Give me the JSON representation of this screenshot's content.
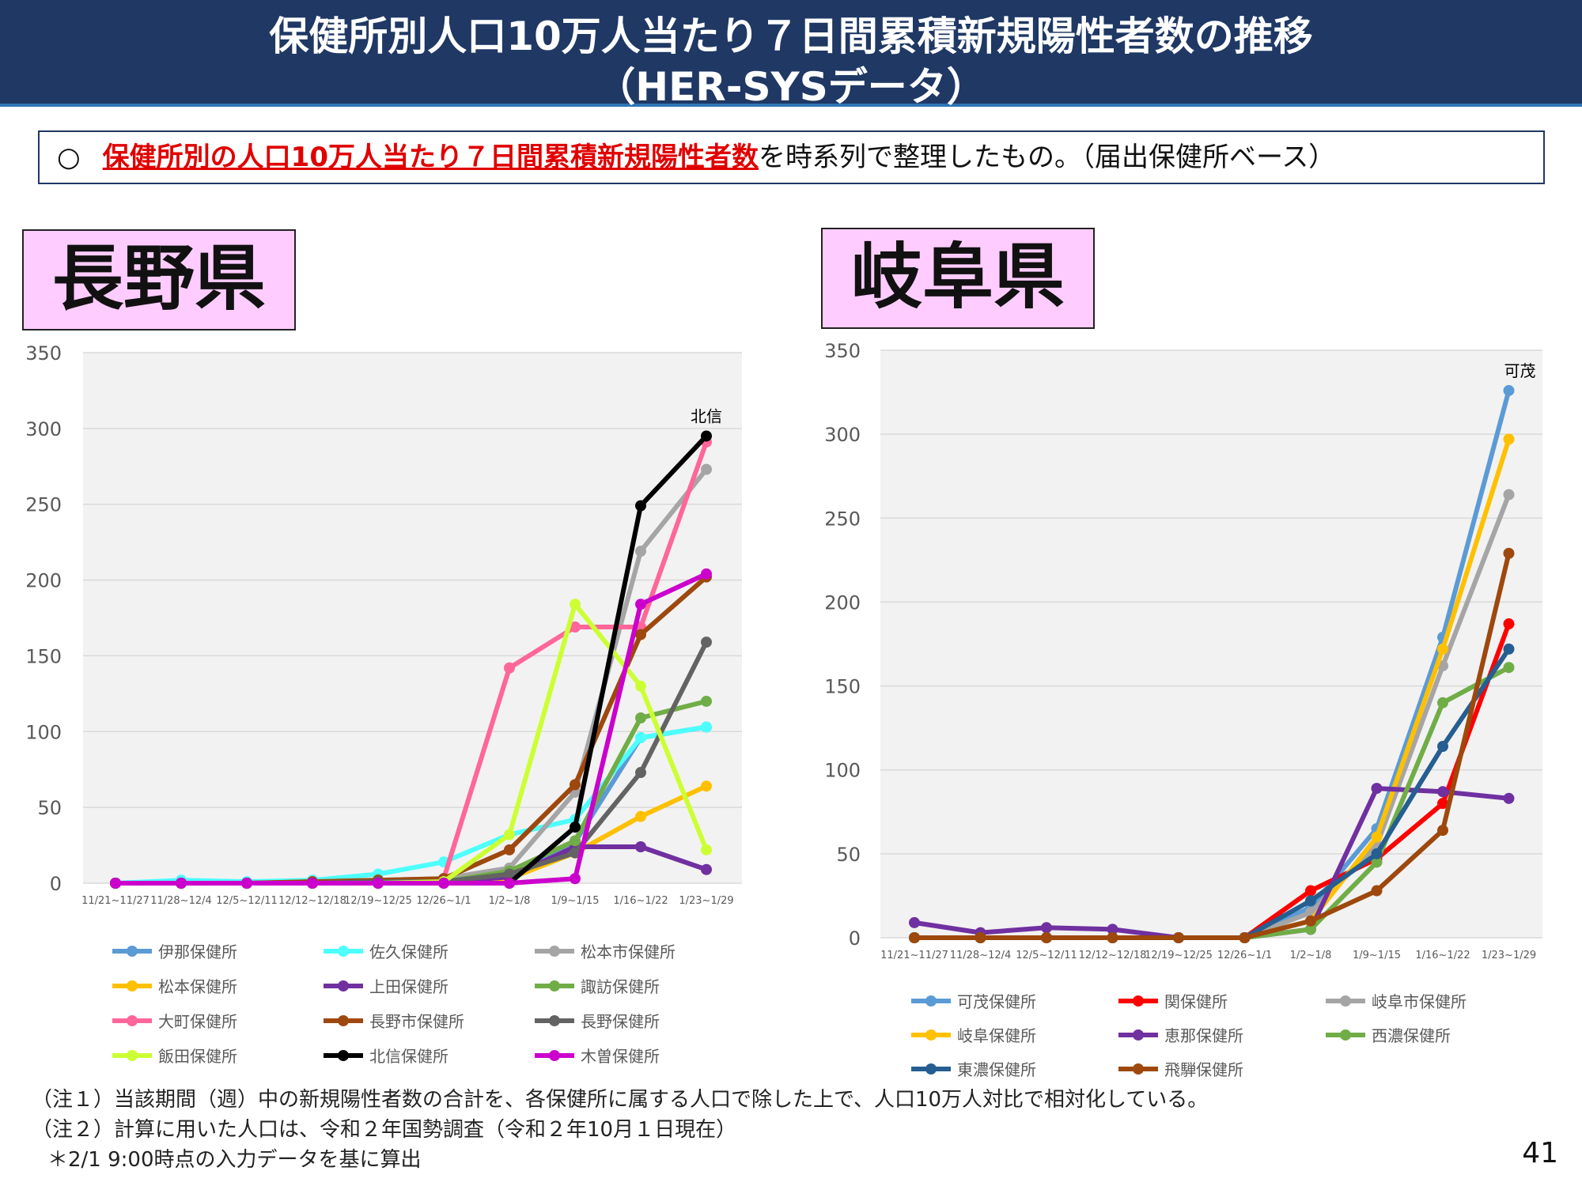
{
  "title": {
    "line1": "保健所別人口10万人当たり７日間累積新規陽性者数の推移",
    "line2": "（HER-SYSデータ）"
  },
  "summary": {
    "mark": "○",
    "emphasis": "保健所別の人口10万人当たり７日間累積新規陽性者数",
    "rest": "を時系列で整理したもの。（届出保健所ベース）"
  },
  "chart_data": [
    {
      "type": "line",
      "panel_label": "長野県",
      "annotation": "北信",
      "ylim": [
        0,
        350
      ],
      "yticks": [
        0,
        50,
        100,
        150,
        200,
        250,
        300,
        350
      ],
      "grid": true,
      "legend_position": "bottom",
      "categories": [
        "11/21~11/27",
        "11/28~12/4",
        "12/5~12/11",
        "12/12~12/18",
        "12/19~12/25",
        "12/26~1/1",
        "1/2~1/8",
        "1/9~1/15",
        "1/16~1/22",
        "1/23~1/29"
      ],
      "series": [
        {
          "name": "伊那保健所",
          "color": "#5b9bd5",
          "values": [
            0,
            0,
            0,
            0,
            1,
            1,
            5,
            27,
            96,
            103
          ]
        },
        {
          "name": "佐久保健所",
          "color": "#4dffff",
          "values": [
            0,
            2,
            1,
            2,
            6,
            14,
            32,
            42,
            96,
            103
          ]
        },
        {
          "name": "松本市保健所",
          "color": "#a5a5a5",
          "values": [
            0,
            0,
            0,
            1,
            2,
            3,
            10,
            60,
            219,
            273
          ]
        },
        {
          "name": "松本保健所",
          "color": "#ffc000",
          "values": [
            0,
            0,
            0,
            0,
            0,
            1,
            3,
            20,
            44,
            64
          ]
        },
        {
          "name": "上田保健所",
          "color": "#7030a0",
          "values": [
            0,
            0,
            0,
            0,
            0,
            1,
            4,
            24,
            24,
            9
          ]
        },
        {
          "name": "諏訪保健所",
          "color": "#70ad47",
          "values": [
            0,
            0,
            0,
            0,
            1,
            1,
            8,
            28,
            109,
            120
          ]
        },
        {
          "name": "大町保健所",
          "color": "#ff6699",
          "values": [
            0,
            0,
            0,
            0,
            0,
            3,
            142,
            169,
            169,
            291
          ]
        },
        {
          "name": "長野市保健所",
          "color": "#9e480e",
          "values": [
            0,
            0,
            0,
            1,
            2,
            3,
            22,
            65,
            164,
            202
          ]
        },
        {
          "name": "長野保健所",
          "color": "#636363",
          "values": [
            0,
            0,
            0,
            0,
            1,
            1,
            6,
            20,
            73,
            159
          ]
        },
        {
          "name": "飯田保健所",
          "color": "#ccff33",
          "values": [
            0,
            0,
            0,
            0,
            0,
            1,
            32,
            184,
            130,
            22
          ]
        },
        {
          "name": "北信保健所",
          "color": "#000000",
          "values": [
            0,
            0,
            0,
            0,
            0,
            0,
            0,
            37,
            249,
            295
          ]
        },
        {
          "name": "木曽保健所",
          "color": "#cc00cc",
          "values": [
            0,
            0,
            0,
            0,
            0,
            0,
            0,
            3,
            184,
            204
          ]
        }
      ]
    },
    {
      "type": "line",
      "panel_label": "岐阜県",
      "annotation": "可茂",
      "ylim": [
        0,
        350
      ],
      "yticks": [
        0,
        50,
        100,
        150,
        200,
        250,
        300,
        350
      ],
      "grid": true,
      "legend_position": "bottom",
      "categories": [
        "11/21~11/27",
        "11/28~12/4",
        "12/5~12/11",
        "12/12~12/18",
        "12/19~12/25",
        "12/26~1/1",
        "1/2~1/8",
        "1/9~1/15",
        "1/16~1/22",
        "1/23~1/29"
      ],
      "series": [
        {
          "name": "可茂保健所",
          "color": "#5b9bd5",
          "values": [
            0,
            0,
            0,
            0,
            0,
            0,
            18,
            65,
            179,
            326
          ]
        },
        {
          "name": "関保健所",
          "color": "#ff0000",
          "values": [
            0,
            0,
            0,
            0,
            0,
            0,
            28,
            47,
            80,
            187
          ]
        },
        {
          "name": "岐阜市保健所",
          "color": "#a5a5a5",
          "values": [
            0,
            0,
            0,
            0,
            0,
            0,
            15,
            55,
            162,
            264
          ]
        },
        {
          "name": "岐阜保健所",
          "color": "#ffc000",
          "values": [
            0,
            0,
            0,
            0,
            0,
            0,
            10,
            60,
            172,
            297
          ]
        },
        {
          "name": "恵那保健所",
          "color": "#7030a0",
          "values": [
            9,
            3,
            6,
            5,
            0,
            0,
            5,
            89,
            87,
            83
          ]
        },
        {
          "name": "西濃保健所",
          "color": "#70ad47",
          "values": [
            0,
            0,
            0,
            0,
            0,
            0,
            5,
            45,
            140,
            161
          ]
        },
        {
          "name": "東濃保健所",
          "color": "#255e91",
          "values": [
            0,
            0,
            0,
            0,
            0,
            0,
            22,
            50,
            114,
            172
          ]
        },
        {
          "name": "飛騨保健所",
          "color": "#9e480e",
          "values": [
            0,
            0,
            0,
            0,
            0,
            0,
            10,
            28,
            64,
            229
          ]
        }
      ]
    }
  ],
  "notes": [
    "（注１）当該期間（週）中の新規陽性者数の合計を、各保健所に属する人口で除した上で、人口10万人対比で相対化している。",
    "（注２）計算に用いた人口は、令和２年国勢調査（令和２年10月１日現在）",
    "＊2/1 9:00時点の入力データを基に算出"
  ],
  "page_number": "41"
}
